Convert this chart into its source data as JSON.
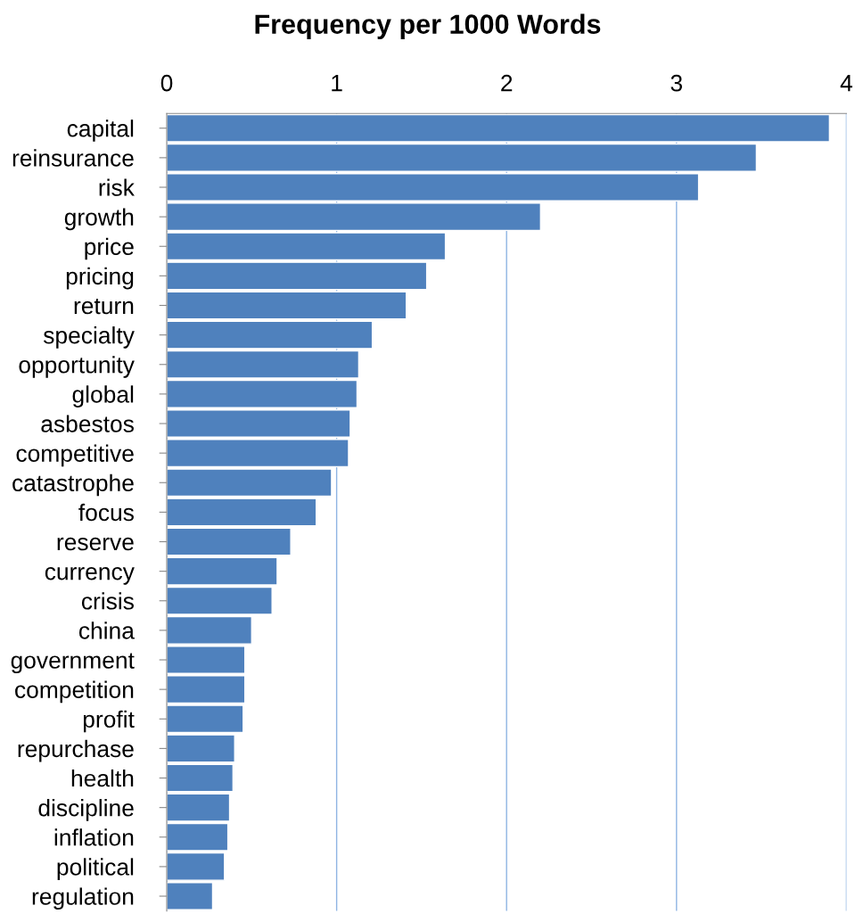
{
  "chart_data": {
    "type": "bar",
    "orientation": "horizontal",
    "title": "Frequency per 1000 Words",
    "categories": [
      "capital",
      "reinsurance",
      "risk",
      "growth",
      "price",
      "pricing",
      "return",
      "specialty",
      "opportunity",
      "global",
      "asbestos",
      "competitive",
      "catastrophe",
      "focus",
      "reserve",
      "currency",
      "crisis",
      "china",
      "government",
      "competition",
      "profit",
      "repurchase",
      "health",
      "discipline",
      "inflation",
      "political",
      "regulation"
    ],
    "values": [
      3.9,
      3.47,
      3.13,
      2.2,
      1.64,
      1.53,
      1.41,
      1.21,
      1.13,
      1.12,
      1.08,
      1.07,
      0.97,
      0.88,
      0.73,
      0.65,
      0.62,
      0.5,
      0.46,
      0.46,
      0.45,
      0.4,
      0.39,
      0.37,
      0.36,
      0.34,
      0.27
    ],
    "color": "#4f81bd",
    "xlim": [
      0,
      4
    ],
    "xticks": [
      0,
      1,
      2,
      3,
      4
    ],
    "grid": "x"
  }
}
